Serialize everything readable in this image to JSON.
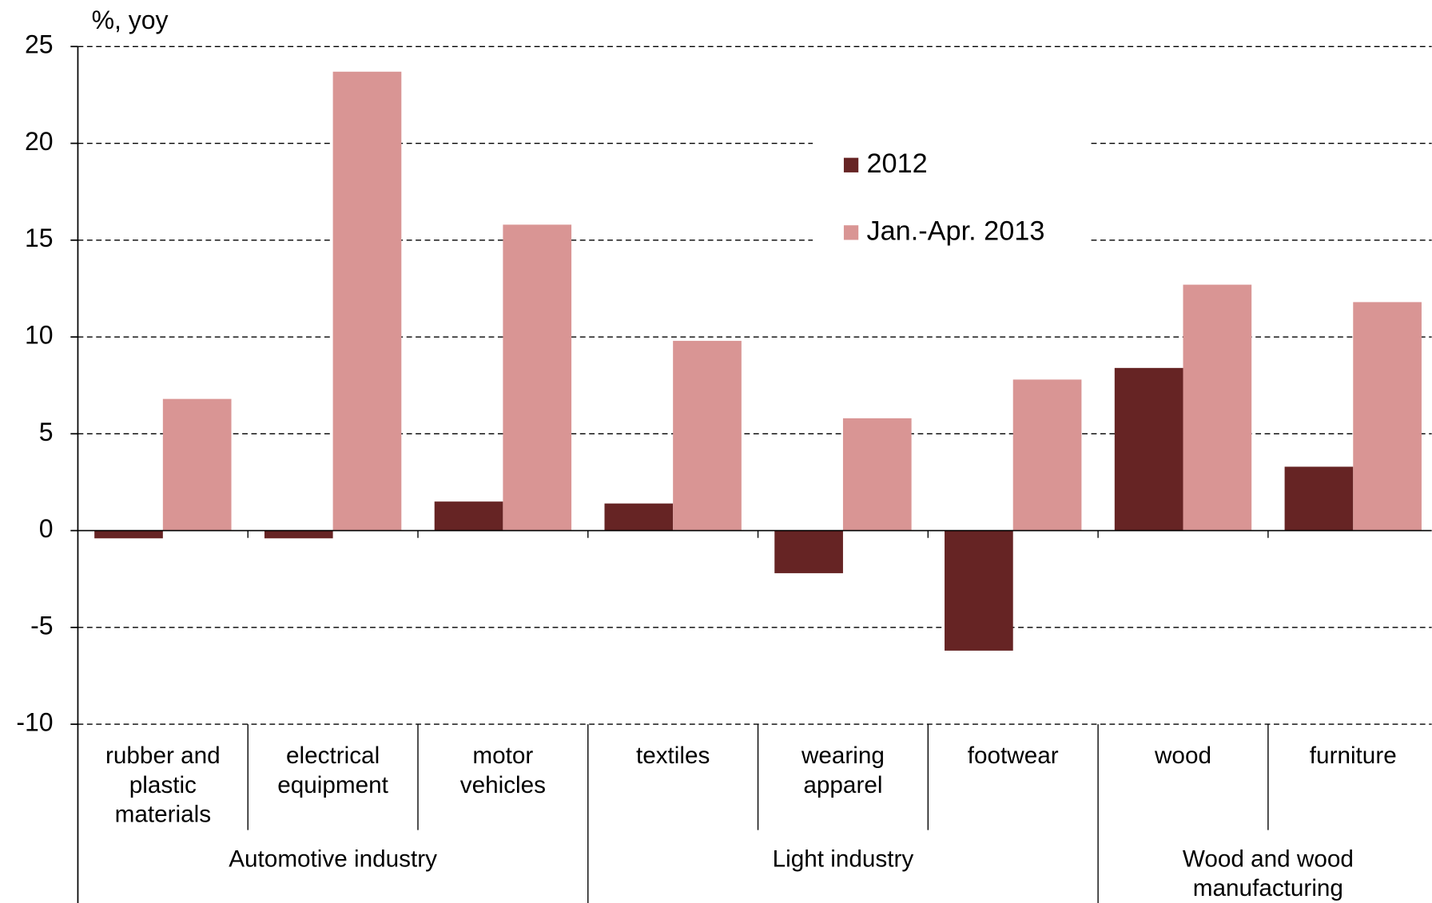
{
  "chart_data": {
    "type": "bar",
    "y_label": "%, yoy",
    "categories": [
      "rubber and plastic materials",
      "electrical equipment",
      "motor vehicles",
      "textiles",
      "wearing apparel",
      "footwear",
      "wood",
      "furniture"
    ],
    "groups": [
      {
        "name": "Automotive industry",
        "size": 3
      },
      {
        "name": "Light industry",
        "size": 3
      },
      {
        "name": "Wood and wood manufacturing",
        "size": 2
      }
    ],
    "series": [
      {
        "name": "2012",
        "color": "#662424",
        "values": [
          -0.4,
          -0.4,
          1.5,
          1.4,
          -2.2,
          -6.2,
          8.4,
          3.3
        ]
      },
      {
        "name": "Jan.-Apr. 2013",
        "color": "#d99594",
        "values": [
          6.8,
          23.7,
          15.8,
          9.8,
          5.8,
          7.8,
          12.7,
          11.8
        ]
      }
    ],
    "ylim": [
      -10,
      25
    ],
    "yticks": [
      -10,
      -5,
      0,
      5,
      10,
      15,
      20,
      25
    ],
    "grid": true
  }
}
